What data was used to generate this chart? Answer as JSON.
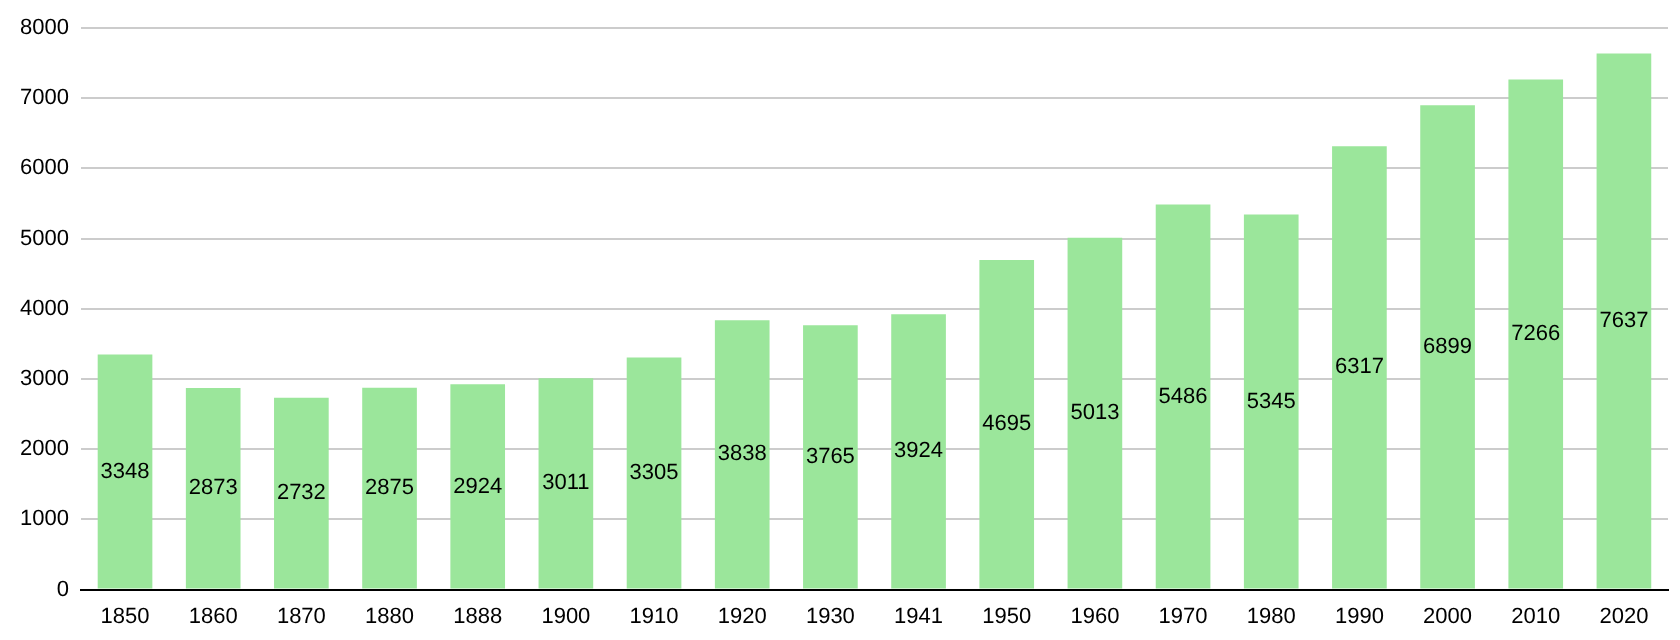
{
  "chart_data": {
    "type": "bar",
    "categories": [
      "1850",
      "1860",
      "1870",
      "1880",
      "1888",
      "1900",
      "1910",
      "1920",
      "1930",
      "1941",
      "1950",
      "1960",
      "1970",
      "1980",
      "1990",
      "2000",
      "2010",
      "2020"
    ],
    "values": [
      3348,
      2873,
      2732,
      2875,
      2924,
      3011,
      3305,
      3838,
      3765,
      3924,
      4695,
      5013,
      5486,
      5345,
      6317,
      6899,
      7266,
      7637
    ],
    "color": "#9be69b",
    "ylim": [
      0,
      8000
    ],
    "yticks": [
      0,
      1000,
      2000,
      3000,
      4000,
      5000,
      6000,
      7000,
      8000
    ],
    "grid": "y",
    "data_labels": true
  }
}
